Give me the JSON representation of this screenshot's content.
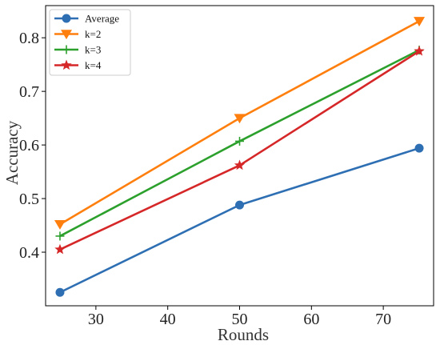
{
  "chart_data": {
    "type": "line",
    "title": "",
    "xlabel": "Rounds",
    "ylabel": "Accuracy",
    "x": [
      25,
      50,
      75
    ],
    "xlim": [
      23,
      77
    ],
    "ylim": [
      0.3,
      0.86
    ],
    "xticks": [
      30,
      40,
      50,
      60,
      70
    ],
    "yticks": [
      0.4,
      0.5,
      0.6,
      0.7,
      0.8
    ],
    "xtick_labels": [
      "30",
      "40",
      "50",
      "60",
      "70"
    ],
    "ytick_labels": [
      "0.4",
      "0.5",
      "0.6",
      "0.7",
      "0.8"
    ],
    "grid": false,
    "legend_position": "top-left",
    "series": [
      {
        "name": "Average",
        "values": [
          0.325,
          0.488,
          0.594
        ],
        "color": "#2e6fb3",
        "marker": "circle"
      },
      {
        "name": "k=2",
        "values": [
          0.452,
          0.65,
          0.831
        ],
        "color": "#ff7f0e",
        "marker": "triangle-down"
      },
      {
        "name": "k=3",
        "values": [
          0.43,
          0.607,
          0.777
        ],
        "color": "#2ca02c",
        "marker": "plus"
      },
      {
        "name": "k=4",
        "values": [
          0.405,
          0.562,
          0.775
        ],
        "color": "#d62728",
        "marker": "star"
      }
    ]
  }
}
